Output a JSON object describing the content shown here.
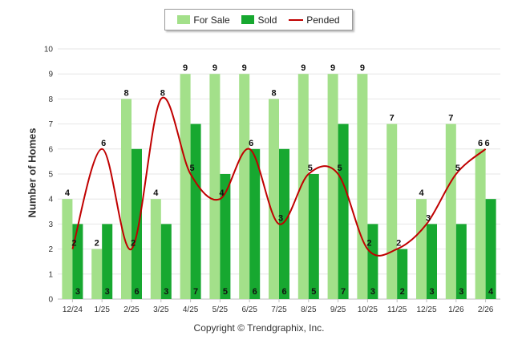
{
  "chart_data": {
    "type": "bar",
    "categories": [
      "12/24",
      "1/25",
      "2/25",
      "3/25",
      "4/25",
      "5/25",
      "6/25",
      "7/25",
      "8/25",
      "9/25",
      "10/25",
      "11/25",
      "12/25",
      "1/26",
      "2/26"
    ],
    "series": [
      {
        "name": "For Sale",
        "type": "bar",
        "color": "#a3e08a",
        "values": [
          4,
          2,
          8,
          4,
          9,
          9,
          9,
          8,
          9,
          9,
          9,
          7,
          4,
          7,
          6
        ]
      },
      {
        "name": "Sold",
        "type": "bar",
        "color": "#17a830",
        "values": [
          3,
          3,
          6,
          3,
          7,
          5,
          6,
          6,
          5,
          7,
          3,
          2,
          3,
          3,
          4
        ]
      },
      {
        "name": "Pended",
        "type": "line",
        "color": "#c00000",
        "values": [
          2,
          6,
          2,
          8,
          5,
          4,
          6,
          3,
          5,
          5,
          2,
          2,
          3,
          5,
          6
        ]
      }
    ],
    "ylabel": "Number of Homes",
    "ylim": [
      0,
      10
    ],
    "yticks": [
      0,
      1,
      2,
      3,
      4,
      5,
      6,
      7,
      8,
      9,
      10
    ],
    "grid": true,
    "legend": "top-center"
  },
  "footer": {
    "copyright": "Copyright © Trendgraphix, Inc."
  }
}
